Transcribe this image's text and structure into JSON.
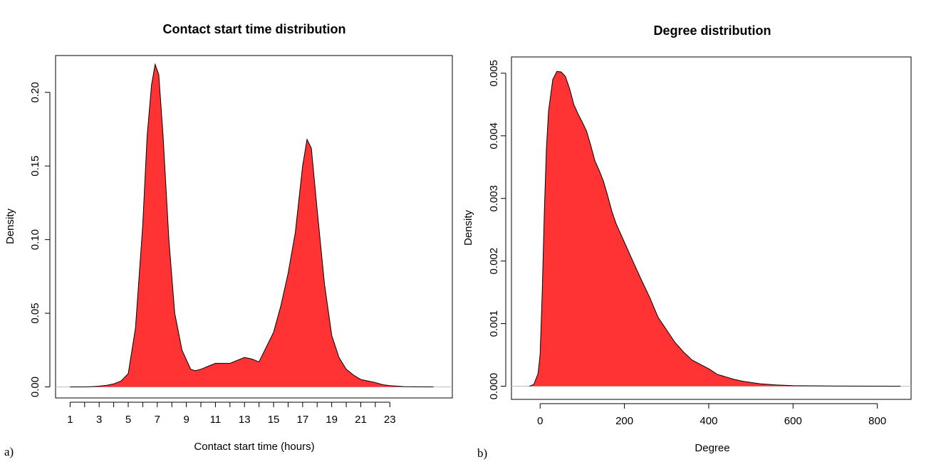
{
  "chart_data": [
    {
      "type": "area",
      "panel_label": "a)",
      "title": "Contact start time distribution",
      "xlabel": "Contact start time (hours)",
      "ylabel": "Density",
      "xlim": [
        0,
        27.3
      ],
      "ylim": [
        -0.0075,
        0.225
      ],
      "x_ticks": [
        1,
        2,
        3,
        4,
        5,
        6,
        7,
        8,
        9,
        10,
        11,
        12,
        13,
        14,
        15,
        16,
        17,
        18,
        19,
        20,
        21,
        22,
        23
      ],
      "x_tick_labels": [
        "1",
        "",
        "3",
        "",
        "5",
        "",
        "7",
        "",
        "9",
        "",
        "11",
        "",
        "13",
        "",
        "15",
        "",
        "17",
        "",
        "19",
        "",
        "21",
        "",
        "23"
      ],
      "y_ticks": [
        0.0,
        0.05,
        0.1,
        0.15,
        0.2
      ],
      "y_tick_labels": [
        "0.00",
        "0.05",
        "0.10",
        "0.15",
        "0.20"
      ],
      "fill_color": "#ff3333",
      "baseline_color": "#bebebe",
      "x": [
        1.0,
        2.0,
        2.5,
        3.0,
        3.5,
        4.0,
        4.5,
        5.0,
        5.5,
        6.0,
        6.3,
        6.6,
        6.85,
        7.1,
        7.4,
        7.8,
        8.2,
        8.7,
        9.3,
        9.6,
        10.0,
        10.5,
        11.0,
        11.5,
        12.0,
        12.5,
        13.0,
        13.5,
        14.0,
        14.5,
        15.0,
        15.5,
        16.0,
        16.5,
        17.0,
        17.3,
        17.6,
        18.0,
        18.5,
        19.0,
        19.5,
        20.0,
        20.5,
        21.0,
        21.5,
        22.0,
        22.5,
        23.0,
        24.0,
        26.0
      ],
      "y": [
        0.0,
        0.0,
        0.0002,
        0.0005,
        0.001,
        0.002,
        0.004,
        0.009,
        0.04,
        0.11,
        0.17,
        0.205,
        0.219,
        0.212,
        0.17,
        0.1,
        0.05,
        0.025,
        0.012,
        0.011,
        0.012,
        0.014,
        0.016,
        0.016,
        0.016,
        0.018,
        0.02,
        0.019,
        0.017,
        0.027,
        0.037,
        0.055,
        0.077,
        0.105,
        0.15,
        0.168,
        0.162,
        0.12,
        0.07,
        0.035,
        0.02,
        0.012,
        0.008,
        0.005,
        0.004,
        0.003,
        0.0015,
        0.0008,
        0.0002,
        0.0
      ]
    },
    {
      "type": "area",
      "panel_label": "b)",
      "title": "Degree distribution",
      "xlabel": "Degree",
      "ylabel": "Density",
      "xlim": [
        -68,
        880
      ],
      "ylim": [
        -0.00021,
        0.00526
      ],
      "x_ticks": [
        0,
        200,
        400,
        600,
        800
      ],
      "x_tick_labels": [
        "0",
        "200",
        "400",
        "600",
        "800"
      ],
      "y_ticks": [
        0.0,
        0.001,
        0.002,
        0.003,
        0.004,
        0.005
      ],
      "y_tick_labels": [
        "0.000",
        "0.001",
        "0.002",
        "0.003",
        "0.004",
        "0.005"
      ],
      "fill_color": "#ff3333",
      "baseline_color": "#bebebe",
      "x": [
        -25,
        -15,
        -5,
        0,
        5,
        10,
        15,
        20,
        30,
        40,
        50,
        60,
        70,
        80,
        90,
        100,
        110,
        120,
        130,
        140,
        150,
        160,
        170,
        180,
        190,
        200,
        220,
        240,
        260,
        280,
        300,
        320,
        340,
        360,
        380,
        400,
        420,
        440,
        460,
        480,
        500,
        520,
        540,
        560,
        580,
        600,
        640,
        700,
        760,
        855
      ],
      "y": [
        0.0,
        3e-05,
        0.0002,
        0.0005,
        0.0015,
        0.0028,
        0.0038,
        0.0044,
        0.0049,
        0.00503,
        0.00502,
        0.00495,
        0.00475,
        0.0045,
        0.00435,
        0.00422,
        0.00408,
        0.00385,
        0.0036,
        0.00345,
        0.00328,
        0.00305,
        0.0028,
        0.0026,
        0.00245,
        0.0023,
        0.002,
        0.0017,
        0.00142,
        0.0011,
        0.0009,
        0.0007,
        0.00055,
        0.00042,
        0.00035,
        0.00028,
        0.00019,
        0.00015,
        0.00011,
        8e-05,
        6e-05,
        4e-05,
        3e-05,
        2e-05,
        1.5e-05,
        1e-05,
        6e-06,
        3e-06,
        1e-06,
        0.0
      ]
    }
  ]
}
